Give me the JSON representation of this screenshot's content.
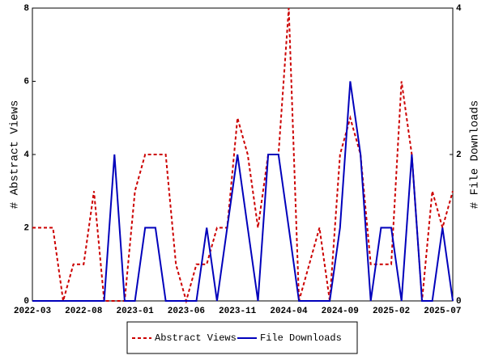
{
  "chart_data": {
    "type": "line",
    "categories": [
      "2022-03",
      null,
      null,
      null,
      null,
      "2022-08",
      null,
      null,
      null,
      null,
      "2023-01",
      null,
      null,
      null,
      null,
      "2023-06",
      null,
      null,
      null,
      null,
      "2023-11",
      null,
      null,
      null,
      null,
      "2024-04",
      null,
      null,
      null,
      null,
      "2024-09",
      null,
      null,
      null,
      null,
      "2025-02",
      null,
      null,
      null,
      null,
      "2025-07",
      null
    ],
    "y_label": "# Abstract Views",
    "y2_label": "# File Downloads",
    "ylim": [
      0,
      8
    ],
    "yticks": [
      0,
      2,
      4,
      6,
      8
    ],
    "y2lim": [
      0,
      4
    ],
    "y2ticks": [
      0,
      2,
      4
    ],
    "legend": "bottom",
    "series": [
      {
        "name": "Abstract Views",
        "color": "#cc0000",
        "dash": true,
        "values": [
          2,
          2,
          2,
          0,
          1,
          1,
          3,
          0,
          0,
          0,
          3,
          4,
          4,
          4,
          1,
          0,
          1,
          1,
          2,
          2,
          5,
          4,
          2,
          4,
          4,
          8,
          0,
          1,
          2,
          0,
          4,
          5,
          4,
          1,
          1,
          1,
          6,
          4,
          0,
          3,
          2,
          3
        ]
      },
      {
        "name": "File Downloads",
        "color": "#0000bb",
        "axis": "y2",
        "values": [
          0,
          0,
          0,
          0,
          0,
          0,
          0,
          0,
          2,
          0,
          0,
          1,
          1,
          0,
          0,
          0,
          0,
          1,
          0,
          1,
          2,
          1,
          0,
          2,
          2,
          1,
          0,
          0,
          0,
          0,
          1,
          3,
          2,
          0,
          1,
          1,
          0,
          2,
          0,
          0,
          1,
          0
        ]
      }
    ]
  }
}
